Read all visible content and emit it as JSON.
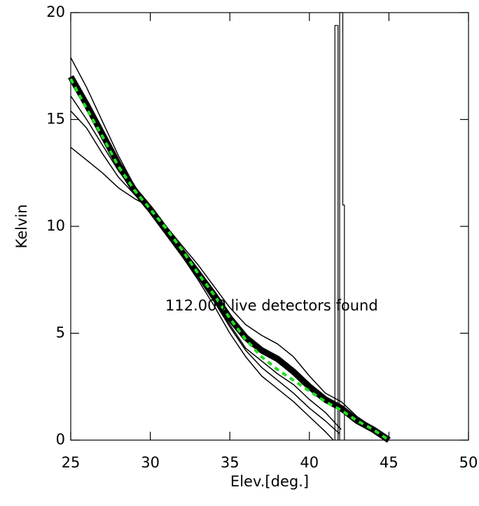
{
  "chart_data": {
    "type": "line",
    "xlabel": "Elev.[deg.]",
    "ylabel": "Kelvin",
    "annotation": "112.000 live detectors found",
    "xlim": [
      25,
      50
    ],
    "xticks": [
      25,
      30,
      35,
      40,
      45,
      50
    ],
    "ylim": [
      0,
      20
    ],
    "yticks": [
      0,
      5,
      10,
      15,
      20
    ],
    "series": [
      {
        "color": "#000000",
        "width": 9,
        "x": [
          25,
          26,
          27,
          28,
          29,
          30,
          31,
          32,
          33,
          34,
          35,
          36,
          37,
          38,
          39,
          40,
          41,
          42,
          43,
          44,
          45
        ],
        "values": [
          17.0,
          15.7,
          14.3,
          12.9,
          11.7,
          10.8,
          9.8,
          8.8,
          7.8,
          6.8,
          5.7,
          4.8,
          4.2,
          3.8,
          3.2,
          2.5,
          1.9,
          1.5,
          0.9,
          0.5,
          0.0
        ]
      },
      {
        "color": "#000000",
        "width": 1.5,
        "x": [
          25,
          26,
          27,
          28,
          29,
          30,
          31,
          32,
          33,
          34,
          35,
          36,
          37,
          38,
          39,
          40,
          41,
          42,
          43,
          44,
          45
        ],
        "values": [
          17.9,
          16.5,
          14.9,
          13.3,
          11.9,
          10.9,
          10.0,
          9.1,
          8.2,
          7.2,
          6.2,
          5.4,
          4.9,
          4.5,
          3.9,
          3.0,
          2.2,
          1.8,
          1.1,
          0.6,
          0.0
        ]
      },
      {
        "color": "#000000",
        "width": 1.5,
        "x": [
          25,
          26,
          27,
          28,
          29,
          30,
          31,
          32,
          33,
          34,
          35,
          36,
          37,
          38,
          39,
          40,
          41,
          42
        ],
        "values": [
          16.1,
          15.0,
          13.8,
          12.6,
          11.6,
          10.8,
          9.7,
          8.6,
          7.6,
          6.5,
          5.4,
          4.3,
          3.7,
          3.1,
          2.6,
          1.9,
          1.3,
          0.5
        ]
      },
      {
        "color": "#000000",
        "width": 1.5,
        "x": [
          25,
          26,
          27,
          28,
          29,
          30,
          31,
          32,
          33,
          34,
          35,
          36,
          37,
          38,
          39,
          40,
          41,
          41.9
        ],
        "values": [
          15.4,
          14.6,
          13.4,
          12.3,
          11.5,
          10.9,
          9.8,
          8.7,
          7.6,
          6.5,
          5.3,
          4.2,
          3.4,
          2.8,
          2.2,
          1.5,
          0.9,
          0.3
        ]
      },
      {
        "color": "#000000",
        "width": 1.5,
        "x": [
          25,
          26,
          27,
          28,
          29,
          30,
          31,
          32,
          33,
          34,
          35,
          36,
          37,
          38,
          39,
          40,
          41,
          41.5
        ],
        "values": [
          13.7,
          13.1,
          12.5,
          11.8,
          11.3,
          10.9,
          9.8,
          8.6,
          7.5,
          6.3,
          5.0,
          3.9,
          3.0,
          2.4,
          1.8,
          1.1,
          0.4,
          0.0
        ]
      },
      {
        "color": "#000000",
        "width": 1.2,
        "x": [
          41.6,
          41.6,
          41.8,
          41.8
        ],
        "values": [
          0,
          19.4,
          19.4,
          0
        ]
      },
      {
        "color": "#000000",
        "width": 1.2,
        "x": [
          41.9,
          41.9,
          42.1,
          42.1,
          42.2,
          42.2
        ],
        "values": [
          0,
          20,
          20,
          11,
          11,
          0
        ]
      },
      {
        "color": "#22dd22",
        "width": 4,
        "dash": true,
        "x": [
          25,
          26,
          27,
          28,
          29,
          30,
          31,
          32,
          33,
          34,
          35,
          36,
          37,
          38,
          39,
          40,
          41,
          42,
          43,
          44,
          45
        ],
        "values": [
          16.9,
          15.5,
          14.2,
          12.8,
          11.7,
          10.8,
          9.9,
          8.9,
          7.8,
          6.8,
          5.7,
          4.7,
          3.9,
          3.3,
          2.8,
          2.3,
          1.8,
          1.4,
          0.9,
          0.5,
          0.0
        ]
      }
    ]
  }
}
